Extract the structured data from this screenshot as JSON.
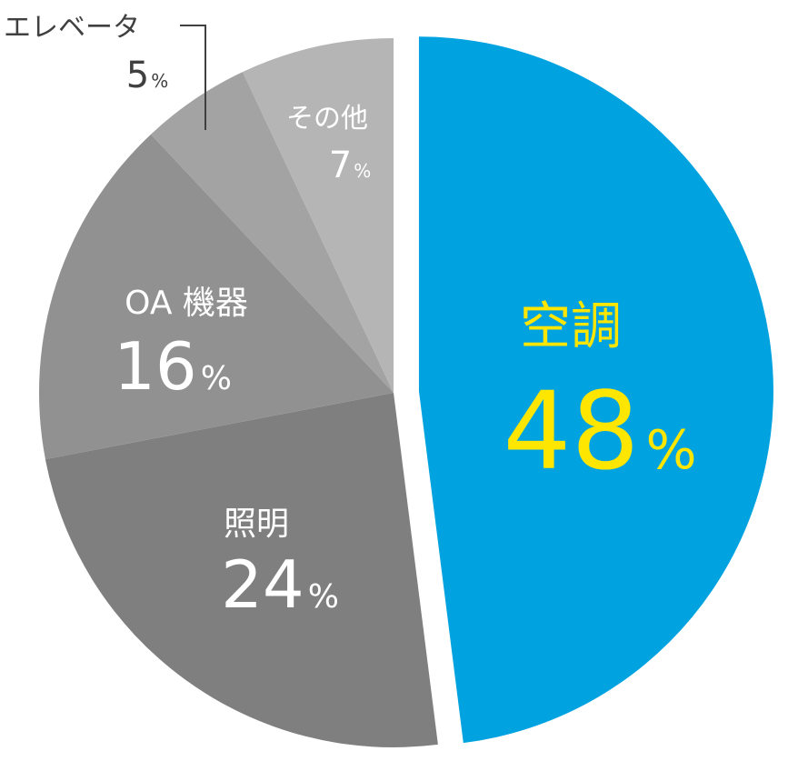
{
  "chart_data": {
    "type": "pie",
    "title": "",
    "start": "12 o'clock, clockwise",
    "slices": [
      {
        "label": "空調",
        "value": 48,
        "value_text": "48",
        "unit": "%",
        "color": "#00a3e0",
        "label_color": "#ffe600",
        "exploded": true
      },
      {
        "label": "照明",
        "value": 24,
        "value_text": "24",
        "unit": "%",
        "color": "#7f7f7f",
        "label_color": "#ffffff",
        "exploded": false
      },
      {
        "label": "OA 機器",
        "value": 16,
        "value_text": "16",
        "unit": "%",
        "color": "#919191",
        "label_color": "#ffffff",
        "exploded": false
      },
      {
        "label": "エレベータ",
        "value": 5,
        "value_text": "5",
        "unit": "%",
        "color": "#a3a3a3",
        "label_color": "#404040",
        "exploded": false,
        "callout": true
      },
      {
        "label": "その他",
        "value": 7,
        "value_text": "7",
        "unit": "%",
        "color": "#b5b5b5",
        "label_color": "#ffffff",
        "exploded": false
      }
    ]
  }
}
